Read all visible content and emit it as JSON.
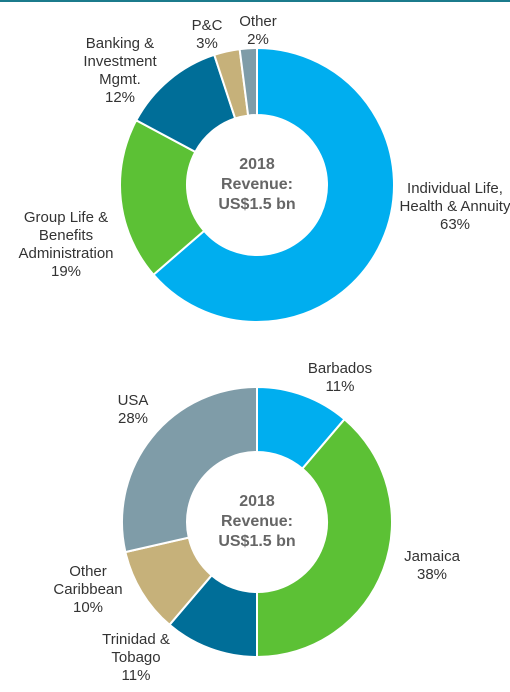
{
  "chart_data": [
    {
      "type": "donut",
      "center_label": "2018 Revenue: US$1.5 bn",
      "categories": [
        "Individual Life, Health & Annuity",
        "Group Life & Benefits Administration",
        "Banking & Investment Mgmt.",
        "P&C",
        "Other"
      ],
      "values": [
        63,
        19,
        12,
        3,
        2
      ],
      "value_labels": [
        "63%",
        "19%",
        "12%",
        "3%",
        "2%"
      ],
      "colors": [
        "#00aeef",
        "#5cc135",
        "#006e98",
        "#c6b17a",
        "#7f9ca8"
      ]
    },
    {
      "type": "donut",
      "center_label": "2018 Revenue: US$1.5 bn",
      "categories": [
        "Barbados",
        "Jamaica",
        "Trinidad & Tobago",
        "Other Caribbean",
        "USA"
      ],
      "values": [
        11,
        38,
        11,
        10,
        28
      ],
      "value_labels": [
        "11%",
        "38%",
        "11%",
        "10%",
        "28%"
      ],
      "colors": [
        "#00aeef",
        "#5cc135",
        "#006e98",
        "#c6b17a",
        "#7f9ca8"
      ]
    }
  ]
}
